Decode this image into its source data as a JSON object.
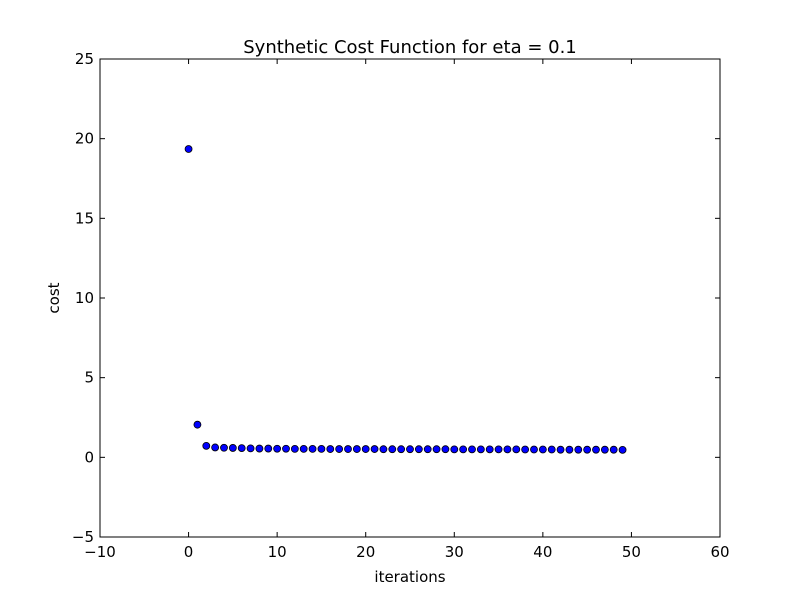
{
  "chart_data": {
    "type": "scatter",
    "title": "Synthetic Cost Function for eta = 0.1",
    "xlabel": "iterations",
    "ylabel": "cost",
    "xlim": [
      -10,
      60
    ],
    "ylim": [
      -5,
      25
    ],
    "xticks": [
      -10,
      0,
      10,
      20,
      30,
      40,
      50,
      60
    ],
    "yticks": [
      -5,
      0,
      5,
      10,
      15,
      20,
      25
    ],
    "grid": false,
    "marker_color": "#0000ff",
    "x": [
      0,
      1,
      2,
      3,
      4,
      5,
      6,
      7,
      8,
      9,
      10,
      11,
      12,
      13,
      14,
      15,
      16,
      17,
      18,
      19,
      20,
      21,
      22,
      23,
      24,
      25,
      26,
      27,
      28,
      29,
      30,
      31,
      32,
      33,
      34,
      35,
      36,
      37,
      38,
      39,
      40,
      41,
      42,
      43,
      44,
      45,
      46,
      47,
      48,
      49
    ],
    "y": [
      19.35,
      2.05,
      0.72,
      0.62,
      0.6,
      0.59,
      0.58,
      0.56,
      0.55,
      0.55,
      0.54,
      0.54,
      0.53,
      0.53,
      0.53,
      0.53,
      0.52,
      0.52,
      0.52,
      0.52,
      0.52,
      0.52,
      0.51,
      0.51,
      0.51,
      0.51,
      0.51,
      0.51,
      0.51,
      0.51,
      0.5,
      0.5,
      0.5,
      0.5,
      0.5,
      0.5,
      0.5,
      0.5,
      0.49,
      0.49,
      0.49,
      0.49,
      0.48,
      0.48,
      0.48,
      0.48,
      0.48,
      0.48,
      0.48,
      0.47
    ]
  }
}
